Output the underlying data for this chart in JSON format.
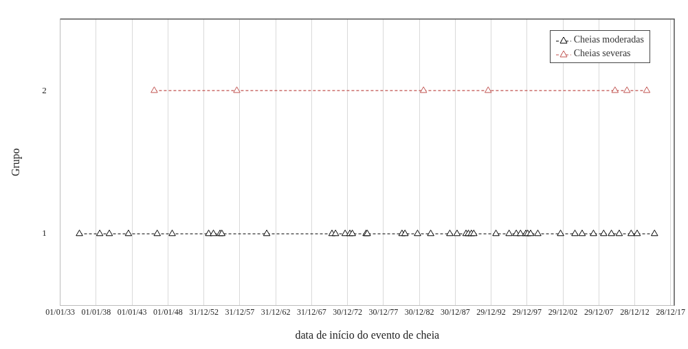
{
  "chart_data": {
    "type": "line",
    "xlabel": "data de início do evento de cheia",
    "ylabel": "Grupo",
    "xlim": [
      "1933-01-01",
      "2018-07-01"
    ],
    "xticks": [
      {
        "value": "1933-01-01",
        "label": "01/01/33"
      },
      {
        "value": "1938-01-01",
        "label": "01/01/38"
      },
      {
        "value": "1943-01-01",
        "label": "01/01/43"
      },
      {
        "value": "1948-01-01",
        "label": "01/01/48"
      },
      {
        "value": "1952-12-31",
        "label": "31/12/52"
      },
      {
        "value": "1957-12-31",
        "label": "31/12/57"
      },
      {
        "value": "1962-12-31",
        "label": "31/12/62"
      },
      {
        "value": "1967-12-31",
        "label": "31/12/67"
      },
      {
        "value": "1972-12-30",
        "label": "30/12/72"
      },
      {
        "value": "1977-12-30",
        "label": "30/12/77"
      },
      {
        "value": "1982-12-30",
        "label": "30/12/82"
      },
      {
        "value": "1987-12-30",
        "label": "30/12/87"
      },
      {
        "value": "1992-12-29",
        "label": "29/12/92"
      },
      {
        "value": "1997-12-29",
        "label": "29/12/97"
      },
      {
        "value": "2002-12-29",
        "label": "29/12/02"
      },
      {
        "value": "2007-12-29",
        "label": "29/12/07"
      },
      {
        "value": "2012-12-28",
        "label": "28/12/12"
      },
      {
        "value": "2017-12-28",
        "label": "28/12/17"
      }
    ],
    "ylim": [
      0.5,
      2.5
    ],
    "yticks": [
      1,
      2
    ],
    "grid": "x",
    "legend": "top right",
    "marker": "triangle",
    "line_style": "dashed",
    "series": [
      {
        "name": "Cheias moderadas",
        "color": "#000000",
        "x": [
          "1935-09",
          "1938-07",
          "1939-11",
          "1942-07",
          "1946-07",
          "1948-08",
          "1953-09",
          "1954-05",
          "1955-04",
          "1955-07",
          "1961-10",
          "1970-11",
          "1971-05",
          "1972-09",
          "1973-05",
          "1973-09",
          "1975-08",
          "1975-10",
          "1980-08",
          "1981-01",
          "1982-10",
          "1984-08",
          "1987-04",
          "1988-04",
          "1989-07",
          "1989-11",
          "1990-04",
          "1990-08",
          "1993-09",
          "1995-07",
          "1996-07",
          "1997-02",
          "1997-11",
          "1998-02",
          "1998-07",
          "1999-07",
          "2002-09",
          "2004-09",
          "2005-09",
          "2007-04",
          "2008-09",
          "2009-10",
          "2010-11",
          "2012-07",
          "2013-05",
          "2015-10"
        ],
        "values": [
          1,
          1,
          1,
          1,
          1,
          1,
          1,
          1,
          1,
          1,
          1,
          1,
          1,
          1,
          1,
          1,
          1,
          1,
          1,
          1,
          1,
          1,
          1,
          1,
          1,
          1,
          1,
          1,
          1,
          1,
          1,
          1,
          1,
          1,
          1,
          1,
          1,
          1,
          1,
          1,
          1,
          1,
          1,
          1,
          1,
          1
        ]
      },
      {
        "name": "Cheias severas",
        "color": "#c0504d",
        "x": [
          "1946-02",
          "1957-08",
          "1983-08",
          "1992-08",
          "2010-04",
          "2011-12",
          "2014-09"
        ],
        "values": [
          2,
          2,
          2,
          2,
          2,
          2,
          2
        ]
      }
    ]
  }
}
